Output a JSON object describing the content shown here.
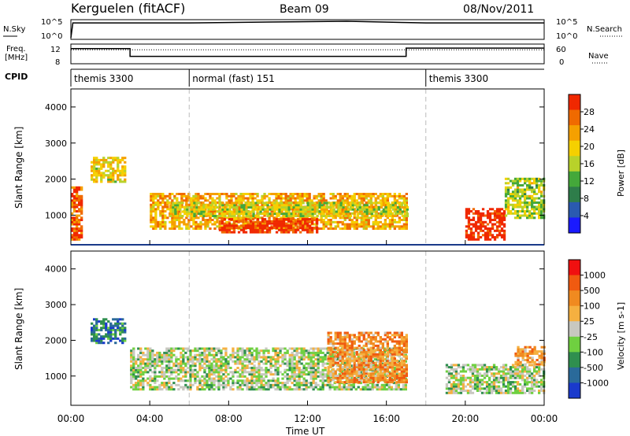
{
  "header": {
    "station": "Kerguelen (fitACF)",
    "beam": "Beam 09",
    "date": "08/Nov/2011"
  },
  "strip_labels": {
    "nsky": "N.Sky",
    "nsearch": "N.Search",
    "freq_line1": "Freq.",
    "freq_line2": "[MHz]",
    "nave": "Nave",
    "cpid": "CPID",
    "nsky_ticks": [
      "10^5",
      "10^0"
    ],
    "nsearch_ticks": [
      "10^5",
      "10^0"
    ],
    "freq_ticks": [
      "12",
      "8"
    ],
    "nave_ticks": [
      "60",
      "0"
    ]
  },
  "cpid_segments": [
    {
      "label": "themis 3300",
      "start_hour": 0
    },
    {
      "label": "normal (fast) 151",
      "start_hour": 6
    },
    {
      "label": "themis 3300",
      "start_hour": 18
    }
  ],
  "axes": {
    "x_label": "Time UT",
    "x_ticks": [
      "00:00",
      "04:00",
      "08:00",
      "12:00",
      "16:00",
      "20:00",
      "00:00"
    ],
    "y_label": "Slant Range [km]",
    "y_ticks": [
      "1000",
      "2000",
      "3000",
      "4000"
    ]
  },
  "power_colorbar": {
    "label": "Power [dB]",
    "ticks": [
      "28",
      "24",
      "20",
      "16",
      "12",
      "8",
      "4"
    ],
    "colors": [
      "#1a1aff",
      "#2a5ab0",
      "#2e7d4a",
      "#44a83a",
      "#b8d22a",
      "#f5d000",
      "#f5a000",
      "#f06a00",
      "#f02800"
    ]
  },
  "velocity_colorbar": {
    "label": "Velocity [m s-1]",
    "ticks": [
      "1000",
      "500",
      "100",
      "25",
      "-25",
      "-100",
      "-500",
      "-1000"
    ],
    "colors": [
      "#1a3acc",
      "#2a6a9a",
      "#2f8f4f",
      "#6fd040",
      "#c8c8c0",
      "#f5b040",
      "#f08a20",
      "#f05a10",
      "#f01010"
    ]
  },
  "chart_data": {
    "type": "heatmap",
    "x_unit": "hour UT",
    "xlim": [
      0,
      24
    ],
    "ylim": [
      180,
      4500
    ],
    "nsky_line": [
      [
        0,
        0.0
      ],
      [
        0.1,
        0.9
      ],
      [
        6,
        0.9
      ],
      [
        10,
        0.95
      ],
      [
        14,
        1.0
      ],
      [
        17,
        0.92
      ],
      [
        18,
        0.9
      ],
      [
        24,
        0.9
      ]
    ],
    "freq_line": [
      [
        0,
        0.82
      ],
      [
        3,
        0.82
      ],
      [
        3,
        0.35
      ],
      [
        17,
        0.35
      ],
      [
        17,
        0.85
      ],
      [
        24,
        0.85
      ]
    ],
    "nave_line": [
      [
        0,
        0.75
      ],
      [
        24,
        0.75
      ]
    ],
    "power_regions": [
      {
        "t0": 4.0,
        "t1": 17.0,
        "r0": 600,
        "r1": 1600,
        "level": 0.7
      },
      {
        "t0": 7.5,
        "t1": 12.5,
        "r0": 500,
        "r1": 900,
        "level": 0.95
      },
      {
        "t0": 5.0,
        "t1": 17.0,
        "r0": 950,
        "r1": 1350,
        "level": 0.55
      },
      {
        "t0": 1.0,
        "t1": 2.8,
        "r0": 1900,
        "r1": 2600,
        "level": 0.6
      },
      {
        "t0": 0.0,
        "t1": 0.6,
        "r0": 300,
        "r1": 1800,
        "level": 0.85
      },
      {
        "t0": 20.0,
        "t1": 22.0,
        "r0": 300,
        "r1": 1200,
        "level": 1.0
      },
      {
        "t0": 22.0,
        "t1": 24.0,
        "r0": 900,
        "r1": 2000,
        "level": 0.5
      }
    ],
    "velocity_regions": [
      {
        "t0": 3.0,
        "t1": 17.0,
        "r0": 600,
        "r1": 1800,
        "level": 0.45
      },
      {
        "t0": 13.0,
        "t1": 17.0,
        "r0": 800,
        "r1": 2200,
        "level": 0.7
      },
      {
        "t0": 1.0,
        "t1": 2.8,
        "r0": 1900,
        "r1": 2600,
        "level": 0.2
      },
      {
        "t0": 19.0,
        "t1": 24.0,
        "r0": 500,
        "r1": 1300,
        "level": 0.45
      },
      {
        "t0": 22.5,
        "t1": 24.0,
        "r0": 1300,
        "r1": 1800,
        "level": 0.7
      }
    ]
  }
}
